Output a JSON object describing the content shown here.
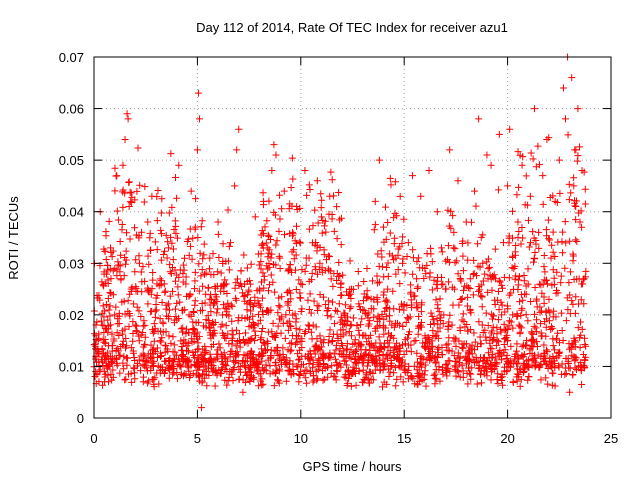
{
  "chart_data": {
    "type": "scatter",
    "title": "Day 112 of 2014, Rate Of TEC Index for receiver azu1",
    "xlabel": "GPS time / hours",
    "ylabel": "ROTI / TECUs",
    "xlim": [
      0,
      25
    ],
    "ylim": [
      0,
      0.07
    ],
    "xticks": [
      0,
      5,
      10,
      15,
      20,
      25
    ],
    "yticks": [
      0,
      0.01,
      0.02,
      0.03,
      0.04,
      0.05,
      0.06,
      0.07
    ],
    "xtick_labels": [
      "0",
      "5",
      "10",
      "15",
      "20",
      "25"
    ],
    "ytick_labels": [
      "0",
      "0.01",
      "0.02",
      "0.03",
      "0.04",
      "0.05",
      "0.06",
      "0.07"
    ],
    "grid": true,
    "marker": "+",
    "color": "#ff0000",
    "data_extent_hours": [
      0,
      23.8
    ],
    "series": [
      {
        "name": "ROTI",
        "points": [
          [
            0.1,
            0.012
          ],
          [
            0.2,
            0.015
          ],
          [
            0.3,
            0.04
          ],
          [
            0.4,
            0.018
          ],
          [
            0.5,
            0.009
          ],
          [
            0.6,
            0.022
          ],
          [
            0.7,
            0.014
          ],
          [
            0.8,
            0.033
          ],
          [
            0.9,
            0.011
          ],
          [
            1.0,
            0.02
          ],
          [
            1.1,
            0.047
          ],
          [
            1.2,
            0.016
          ],
          [
            1.3,
            0.027
          ],
          [
            1.4,
            0.049
          ],
          [
            1.5,
            0.054
          ],
          [
            1.6,
            0.059
          ],
          [
            1.65,
            0.058
          ],
          [
            1.7,
            0.041
          ],
          [
            1.8,
            0.025
          ],
          [
            1.9,
            0.013
          ],
          [
            2.0,
            0.018
          ],
          [
            2.2,
            0.03
          ],
          [
            2.4,
            0.012
          ],
          [
            2.6,
            0.038
          ],
          [
            2.8,
            0.043
          ],
          [
            3.0,
            0.022
          ],
          [
            3.2,
            0.015
          ],
          [
            3.4,
            0.026
          ],
          [
            3.6,
            0.033
          ],
          [
            3.8,
            0.011
          ],
          [
            4.0,
            0.019
          ],
          [
            4.1,
            0.049
          ],
          [
            4.3,
            0.028
          ],
          [
            4.5,
            0.014
          ],
          [
            4.7,
            0.044
          ],
          [
            4.9,
            0.037
          ],
          [
            5.0,
            0.052
          ],
          [
            5.05,
            0.063
          ],
          [
            5.1,
            0.058
          ],
          [
            5.2,
            0.002
          ],
          [
            5.4,
            0.024
          ],
          [
            5.6,
            0.031
          ],
          [
            5.8,
            0.017
          ],
          [
            6.0,
            0.038
          ],
          [
            6.2,
            0.012
          ],
          [
            6.4,
            0.026
          ],
          [
            6.6,
            0.034
          ],
          [
            6.8,
            0.045
          ],
          [
            6.9,
            0.052
          ],
          [
            7.0,
            0.056
          ],
          [
            7.2,
            0.005
          ],
          [
            7.4,
            0.021
          ],
          [
            7.6,
            0.013
          ],
          [
            7.8,
            0.039
          ],
          [
            8.0,
            0.025
          ],
          [
            8.2,
            0.042
          ],
          [
            8.4,
            0.033
          ],
          [
            8.6,
            0.048
          ],
          [
            8.7,
            0.053
          ],
          [
            8.8,
            0.051
          ],
          [
            9.0,
            0.029
          ],
          [
            9.2,
            0.044
          ],
          [
            9.4,
            0.017
          ],
          [
            9.6,
            0.036
          ],
          [
            9.8,
            0.041
          ],
          [
            10.0,
            0.026
          ],
          [
            10.2,
            0.048
          ],
          [
            10.4,
            0.031
          ],
          [
            10.6,
            0.018
          ],
          [
            10.8,
            0.046
          ],
          [
            11.0,
            0.039
          ],
          [
            11.2,
            0.022
          ],
          [
            11.4,
            0.043
          ],
          [
            11.6,
            0.028
          ],
          [
            11.8,
            0.015
          ],
          [
            12.0,
            0.019
          ],
          [
            12.2,
            0.012
          ],
          [
            12.4,
            0.024
          ],
          [
            12.6,
            0.009
          ],
          [
            12.8,
            0.017
          ],
          [
            13.0,
            0.021
          ],
          [
            13.2,
            0.029
          ],
          [
            13.4,
            0.014
          ],
          [
            13.6,
            0.042
          ],
          [
            13.8,
            0.05
          ],
          [
            14.0,
            0.037
          ],
          [
            14.2,
            0.025
          ],
          [
            14.4,
            0.018
          ],
          [
            14.6,
            0.031
          ],
          [
            14.8,
            0.013
          ],
          [
            15.0,
            0.022
          ],
          [
            15.2,
            0.034
          ],
          [
            15.4,
            0.047
          ],
          [
            15.6,
            0.027
          ],
          [
            15.8,
            0.043
          ],
          [
            16.0,
            0.029
          ],
          [
            16.2,
            0.048
          ],
          [
            16.4,
            0.016
          ],
          [
            16.6,
            0.04
          ],
          [
            16.8,
            0.033
          ],
          [
            17.0,
            0.025
          ],
          [
            17.2,
            0.052
          ],
          [
            17.4,
            0.036
          ],
          [
            17.6,
            0.046
          ],
          [
            17.8,
            0.019
          ],
          [
            18.0,
            0.038
          ],
          [
            18.2,
            0.027
          ],
          [
            18.4,
            0.044
          ],
          [
            18.6,
            0.058
          ],
          [
            18.8,
            0.03
          ],
          [
            19.0,
            0.051
          ],
          [
            19.2,
            0.049
          ],
          [
            19.4,
            0.022
          ],
          [
            19.6,
            0.055
          ],
          [
            19.8,
            0.034
          ],
          [
            20.0,
            0.045
          ],
          [
            20.1,
            0.056
          ],
          [
            20.3,
            0.029
          ],
          [
            20.5,
            0.038
          ],
          [
            20.7,
            0.049
          ],
          [
            20.9,
            0.024
          ],
          [
            21.1,
            0.043
          ],
          [
            21.3,
            0.06
          ],
          [
            21.5,
            0.036
          ],
          [
            21.7,
            0.047
          ],
          [
            21.9,
            0.054
          ],
          [
            22.1,
            0.031
          ],
          [
            22.3,
            0.042
          ],
          [
            22.5,
            0.05
          ],
          [
            22.7,
            0.064
          ],
          [
            22.8,
            0.058
          ],
          [
            22.9,
            0.07
          ],
          [
            23.0,
            0.005
          ],
          [
            23.1,
            0.066
          ],
          [
            23.2,
            0.045
          ],
          [
            23.3,
            0.052
          ],
          [
            23.4,
            0.06
          ],
          [
            23.5,
            0.038
          ],
          [
            23.6,
            0.048
          ],
          [
            23.7,
            0.027
          ]
        ]
      }
    ]
  }
}
